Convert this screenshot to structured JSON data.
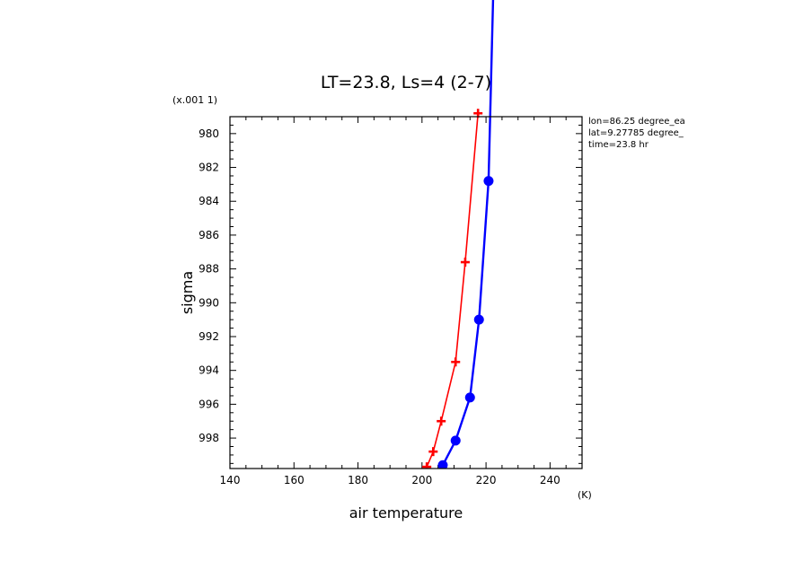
{
  "chart_data": {
    "type": "line",
    "title": "LT=23.8, Ls=4 (2-7)",
    "xlabel": "air temperature",
    "xunit": "(K)",
    "ylabel": "sigma",
    "yunit": "(x.001 1)",
    "xlim": [
      140,
      250
    ],
    "ylim": [
      979,
      999.8
    ],
    "y_inverted": true,
    "x_ticks": [
      "140",
      "160",
      "180",
      "200",
      "220",
      "240"
    ],
    "y_ticks": [
      "980",
      "982",
      "984",
      "986",
      "988",
      "990",
      "992",
      "994",
      "996",
      "998"
    ],
    "info": [
      "lon=86.25 degree_ea",
      "lat=9.27785 degree_",
      "time=23.8 hr"
    ],
    "series": [
      {
        "color": "#ff0000",
        "marker": "cross",
        "x": [
          201.5,
          203.5,
          206,
          210.5,
          213.5,
          217.5
        ],
        "y": [
          999.7,
          998.8,
          997.0,
          993.5,
          987.6,
          978.8
        ]
      },
      {
        "color": "#0000ff",
        "marker": "circle",
        "x": [
          206.5,
          210.5,
          215,
          217.8,
          220.8,
          223
        ],
        "y": [
          999.6,
          998.15,
          995.6,
          991.0,
          982.8,
          966
        ]
      }
    ]
  }
}
